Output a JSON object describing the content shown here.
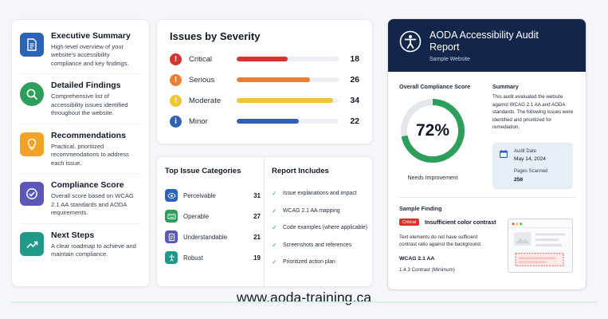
{
  "features": [
    {
      "title": "Executive Summary",
      "desc": "High-level overview of your website's accessibility compliance and key findings.",
      "color": "#2c64b8",
      "icon": "document-icon"
    },
    {
      "title": "Detailed Findings",
      "desc": "Comprehensive list of accessibility issues identified throughout the website.",
      "color": "#2e9e5b",
      "icon": "magnifier-icon"
    },
    {
      "title": "Recommendations",
      "desc": "Practical, prioritized recommendations to address each issue.",
      "color": "#f2a226",
      "icon": "lightbulb-icon"
    },
    {
      "title": "Compliance Score",
      "desc": "Overall score based on WCAG 2.1 AA standards and AODA requirements.",
      "color": "#5b57b8",
      "icon": "check-circle-icon"
    },
    {
      "title": "Next Steps",
      "desc": "A clear roadmap to achieve and maintain compliance.",
      "color": "#1f9a8a",
      "icon": "trend-up-icon"
    }
  ],
  "severity": {
    "title": "Issues by Severity",
    "max": 36,
    "items": [
      {
        "label": "Critical",
        "count": 18,
        "color": "#d9342b",
        "icon_glyph": "!"
      },
      {
        "label": "Serious",
        "count": 26,
        "color": "#ef7f2d",
        "icon_glyph": "!"
      },
      {
        "label": "Moderate",
        "count": 34,
        "color": "#f3c531",
        "icon_glyph": "!"
      },
      {
        "label": "Minor",
        "count": 22,
        "color": "#2f62b5",
        "icon_glyph": "i"
      }
    ]
  },
  "categories": {
    "title": "Top Issue Categories",
    "items": [
      {
        "label": "Perceivable",
        "count": 31,
        "color": "#2c64b8",
        "icon": "eye-icon"
      },
      {
        "label": "Operable",
        "count": 27,
        "color": "#2e9e5b",
        "icon": "keyboard-icon"
      },
      {
        "label": "Understandable",
        "count": 21,
        "color": "#5b57b8",
        "icon": "page-icon"
      },
      {
        "label": "Robust",
        "count": 19,
        "color": "#1f9a8a",
        "icon": "accessibility-icon"
      }
    ]
  },
  "includes": {
    "title": "Report Includes",
    "check_glyph": "✓",
    "items": [
      "Issue explanations and impact",
      "WCAG 2.1 AA mapping",
      "Code examples (where applicable)",
      "Screenshots and references",
      "Prioritized action plan"
    ]
  },
  "report": {
    "title": "AODA Accessibility Audit Report",
    "subtitle": "Sample Website",
    "score_heading": "Overall Compliance Score",
    "score": 72,
    "score_label": "72%",
    "score_status": "Needs Improvement",
    "summary_heading": "Summary",
    "summary_text": "This audit evaluated the website against WCAG 2.1 AA and AODA standards. The following issues were identified and prioritized for remediation.",
    "audit_date_label": "Audit Date",
    "audit_date": "May 14, 2024",
    "pages_label": "Pages Scanned",
    "pages": "256",
    "finding_heading": "Sample Finding",
    "finding_badge": "Critical",
    "finding_title": "Insufficient color contrast",
    "finding_desc": "Text elements do not have sufficient contrast ratio against the background.",
    "finding_wcag": "WCAG 2.1 AA",
    "finding_criterion": "1.4.3 Contrast (Minimum)",
    "header_color": "#13254a",
    "gauge_color": "#2e9e5b"
  },
  "footer": {
    "url": "www.aoda-training.ca"
  }
}
